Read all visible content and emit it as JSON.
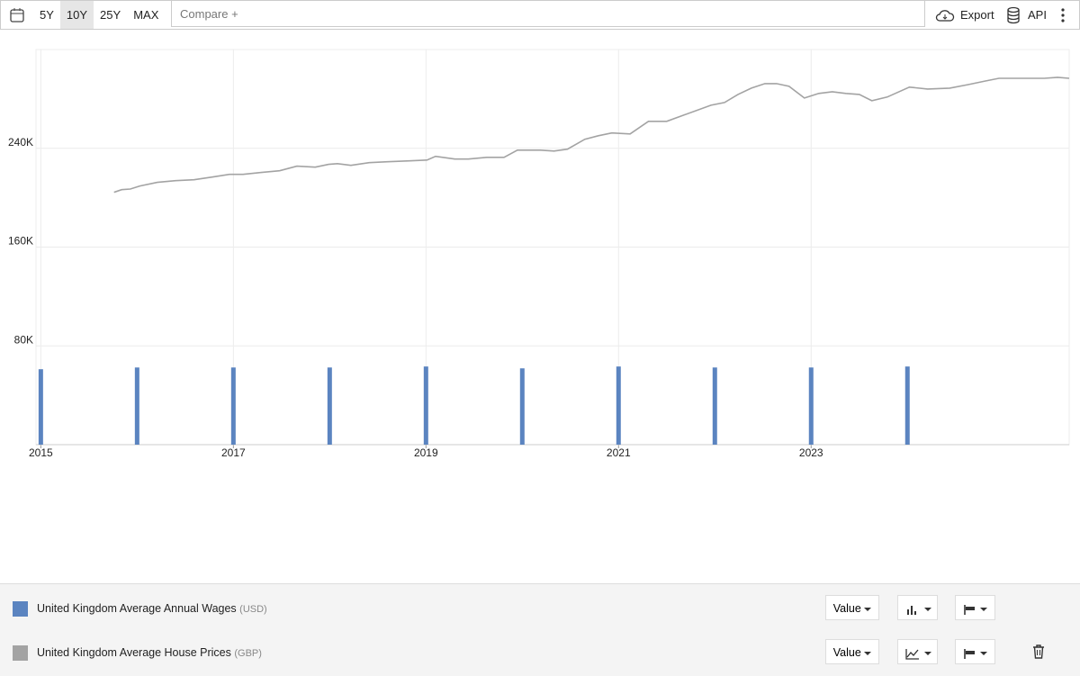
{
  "toolbar": {
    "ranges": [
      "5Y",
      "10Y",
      "25Y",
      "MAX"
    ],
    "active_range": 1,
    "compare": "Compare +",
    "export": "Export",
    "api": "API"
  },
  "chart_data": {
    "type": "combo",
    "xlim": [
      2014.95,
      2025.68
    ],
    "xticks": [
      2015,
      2017,
      2019,
      2021,
      2023
    ],
    "ylim": [
      0,
      320000
    ],
    "yticks": [
      {
        "value": 80000,
        "label": "80K"
      },
      {
        "value": 160000,
        "label": "160K"
      },
      {
        "value": 240000,
        "label": "240K"
      }
    ],
    "grid": true,
    "series": [
      {
        "name": "United Kingdom Average Annual Wages",
        "unit": "(USD)",
        "type": "bar",
        "color": "#5b84c0",
        "x": [
          2015,
          2016,
          2017,
          2018,
          2019,
          2020,
          2021,
          2022,
          2023,
          2024
        ],
        "values": [
          61100,
          62500,
          62500,
          62500,
          63300,
          61800,
          63300,
          62500,
          62500,
          63300
        ]
      },
      {
        "name": "United Kingdom Average House Prices",
        "unit": "(GBP)",
        "type": "line",
        "color": "#a3a3a3",
        "x": [
          2015.76,
          2015.84,
          2015.93,
          2016.03,
          2016.21,
          2016.4,
          2016.59,
          2016.78,
          2016.96,
          2017.1,
          2017.29,
          2017.48,
          2017.66,
          2017.85,
          2017.99,
          2018.08,
          2018.22,
          2018.41,
          2018.6,
          2018.83,
          2019.01,
          2019.1,
          2019.3,
          2019.44,
          2019.63,
          2019.81,
          2019.95,
          2020.19,
          2020.33,
          2020.47,
          2020.65,
          2020.79,
          2020.93,
          2021.12,
          2021.31,
          2021.5,
          2021.68,
          2021.96,
          2022.1,
          2022.24,
          2022.38,
          2022.52,
          2022.64,
          2022.77,
          2022.93,
          2023.08,
          2023.22,
          2023.36,
          2023.5,
          2023.63,
          2023.79,
          2024.02,
          2024.21,
          2024.44,
          2024.63,
          2024.81,
          2024.95,
          2025.14,
          2025.42,
          2025.56,
          2025.68
        ],
        "values": [
          204400,
          206500,
          207000,
          209500,
          212400,
          213800,
          214500,
          216700,
          218900,
          218900,
          220400,
          221800,
          225500,
          224700,
          227000,
          227600,
          226200,
          228400,
          229100,
          229800,
          230500,
          233500,
          231300,
          231300,
          232700,
          232700,
          238500,
          238500,
          237800,
          239300,
          247300,
          250200,
          252400,
          251600,
          261800,
          261800,
          266900,
          274900,
          277100,
          283600,
          288700,
          292400,
          292400,
          290200,
          280700,
          284400,
          285800,
          284400,
          283600,
          278500,
          281500,
          289500,
          288000,
          288700,
          291600,
          294500,
          296700,
          296700,
          296700,
          297500,
          296700
        ]
      }
    ]
  },
  "legend_controls": {
    "value_button": "Value"
  }
}
